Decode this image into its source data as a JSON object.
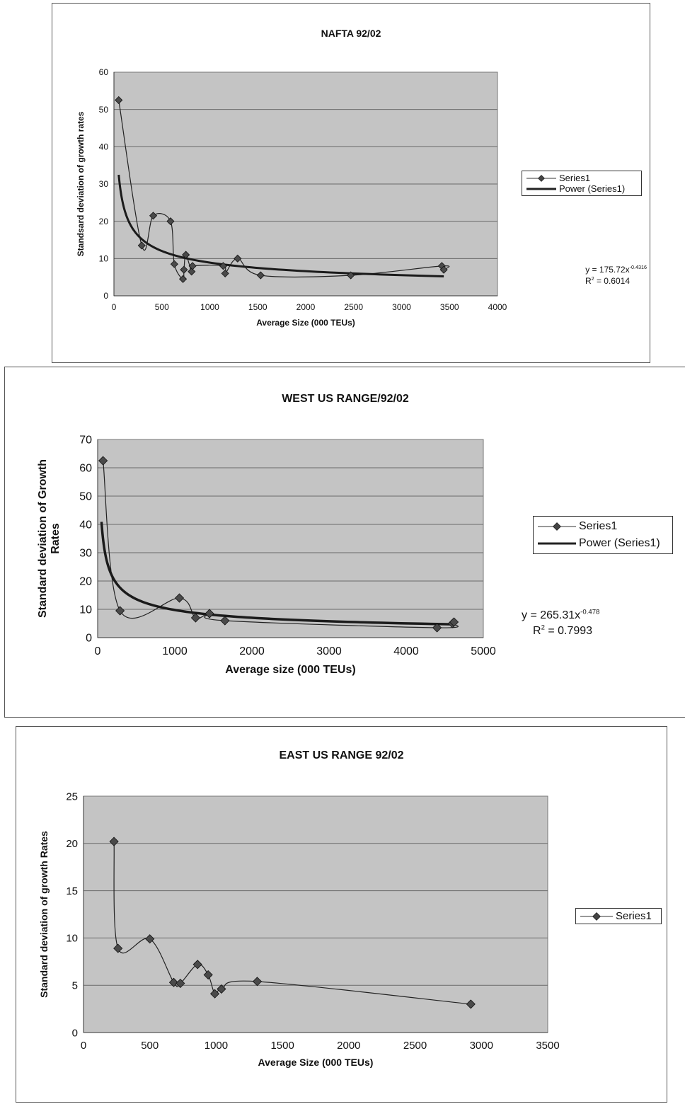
{
  "chart_data": [
    {
      "type": "scatter",
      "title": "NAFTA 92/02",
      "xlabel": "Average Size (000 TEUs)",
      "ylabel": "Standsard deviation of growth rates",
      "xlim": [
        0,
        4000
      ],
      "ylim": [
        0,
        60
      ],
      "xticks": [
        0,
        500,
        1000,
        1500,
        2000,
        2500,
        3000,
        3500,
        4000
      ],
      "yticks": [
        0,
        10,
        20,
        30,
        40,
        50,
        60
      ],
      "grid": true,
      "legend_position": "right",
      "series": [
        {
          "name": "Series1",
          "x": [
            50,
            290,
            410,
            590,
            630,
            720,
            730,
            750,
            810,
            820,
            1140,
            1160,
            1290,
            1530,
            2470,
            3420,
            3440
          ],
          "y": [
            52.5,
            13.5,
            21.5,
            20,
            8.5,
            4.5,
            7,
            11,
            6.5,
            8,
            8,
            6,
            10,
            5.5,
            5.5,
            8,
            7
          ]
        },
        {
          "name": "Power (Series1)",
          "trendline": {
            "kind": "power",
            "a": 175.72,
            "b": -0.4316,
            "x_from": 50,
            "x_to": 3440
          }
        }
      ],
      "equation": {
        "lhs": "y = 175.72x",
        "exponent": "-0.4316",
        "r2_label": "R",
        "r2_exp": "2",
        "r2_value": " = 0.6014"
      }
    },
    {
      "type": "scatter",
      "title": "WEST US RANGE/92/02",
      "xlabel": "Average size (000 TEUs)",
      "ylabel_line1": "Standard deviation of Growth",
      "ylabel_line2": "Rates",
      "xlim": [
        0,
        5000
      ],
      "ylim": [
        0,
        70
      ],
      "xticks": [
        0,
        1000,
        2000,
        3000,
        4000,
        5000
      ],
      "yticks": [
        0,
        10,
        20,
        30,
        40,
        50,
        60,
        70
      ],
      "grid": true,
      "legend_position": "right",
      "series": [
        {
          "name": "Series1",
          "x": [
            70,
            290,
            1060,
            1270,
            1450,
            1650,
            4400,
            4600,
            4620
          ],
          "y": [
            62.5,
            9.5,
            14,
            7,
            8.5,
            6,
            3.5,
            5,
            5.5
          ]
        },
        {
          "name": "Power (Series1)",
          "trendline": {
            "kind": "power",
            "a": 265.31,
            "b": -0.478,
            "x_from": 50,
            "x_to": 4620
          }
        }
      ],
      "equation": {
        "lhs": "y = 265.31x",
        "exponent": "-0.478",
        "r2_label": "R",
        "r2_exp": "2",
        "r2_value": " = 0.7993"
      }
    },
    {
      "type": "line",
      "title": "EAST US RANGE 92/02",
      "xlabel": "Average Size (000 TEUs)",
      "ylabel": "Standard deviation of growth Rates",
      "xlim": [
        0,
        3500
      ],
      "ylim": [
        0,
        25
      ],
      "xticks": [
        0,
        500,
        1000,
        1500,
        2000,
        2500,
        3000,
        3500
      ],
      "yticks": [
        0,
        5,
        10,
        15,
        20,
        25
      ],
      "grid": true,
      "legend_position": "right",
      "series": [
        {
          "name": "Series1",
          "x": [
            230,
            260,
            500,
            680,
            730,
            860,
            940,
            990,
            1040,
            1310,
            2920
          ],
          "y": [
            20.2,
            8.9,
            9.9,
            5.3,
            5.2,
            7.2,
            6.1,
            4.1,
            4.6,
            5.4,
            3.0
          ]
        }
      ]
    }
  ]
}
